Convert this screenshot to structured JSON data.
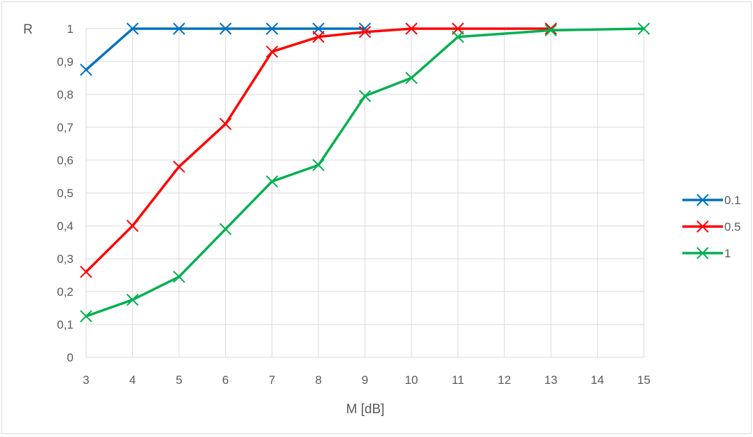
{
  "chart_data": {
    "type": "line",
    "xlabel": "M [dB]",
    "ylabel": "R",
    "x_ticks": [
      "3",
      "4",
      "5",
      "6",
      "7",
      "8",
      "9",
      "10",
      "11",
      "12",
      "13",
      "14",
      "15"
    ],
    "y_ticks": [
      "0",
      "0,1",
      "0,2",
      "0,3",
      "0,4",
      "0,5",
      "0,6",
      "0,7",
      "0,8",
      "0,9",
      "1"
    ],
    "xlim": [
      3,
      15
    ],
    "ylim": [
      0,
      1
    ],
    "grid": true,
    "legend_position": "right",
    "marker": "x",
    "series": [
      {
        "name": "0.1",
        "color": "#0070C0",
        "points": [
          [
            3,
            0.875
          ],
          [
            4,
            1
          ],
          [
            5,
            1
          ],
          [
            6,
            1
          ],
          [
            7,
            1
          ],
          [
            8,
            1
          ],
          [
            9,
            1
          ]
        ]
      },
      {
        "name": "0.5",
        "color": "#FF0000",
        "points": [
          [
            3,
            0.26
          ],
          [
            4,
            0.4
          ],
          [
            5,
            0.58
          ],
          [
            6,
            0.71
          ],
          [
            7,
            0.93
          ],
          [
            8,
            0.975
          ],
          [
            9,
            0.99
          ],
          [
            10,
            1
          ],
          [
            11,
            1
          ],
          [
            13,
            1
          ]
        ]
      },
      {
        "name": "1",
        "color": "#00B050",
        "points": [
          [
            3,
            0.125
          ],
          [
            4,
            0.175
          ],
          [
            5,
            0.245
          ],
          [
            6,
            0.39
          ],
          [
            7,
            0.535
          ],
          [
            8,
            0.585
          ],
          [
            9,
            0.795
          ],
          [
            10,
            0.85
          ],
          [
            11,
            0.975
          ],
          [
            13,
            0.995
          ],
          [
            15,
            1
          ]
        ]
      }
    ]
  }
}
